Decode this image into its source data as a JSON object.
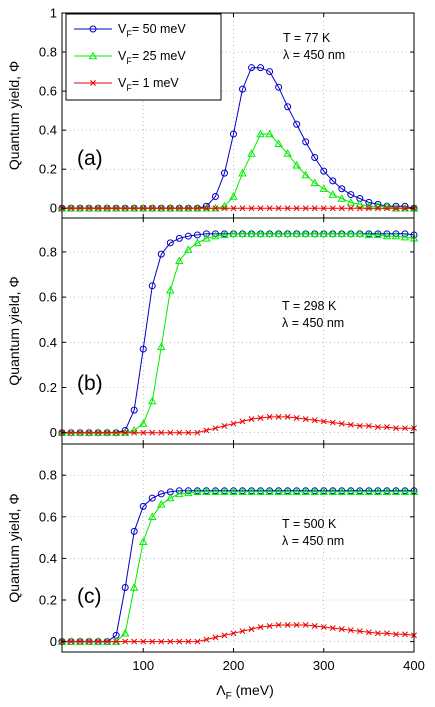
{
  "figure": {
    "x_axis": {
      "label_main": "Λ",
      "label_sub": "F",
      "label_unit": " (meV)",
      "xlim": [
        10,
        400
      ],
      "ticks": [
        100,
        200,
        300,
        400
      ],
      "tick_labels": [
        "100",
        "200",
        "300",
        "400"
      ]
    },
    "y_axis_label": "Quantum yield, Φ",
    "legend": {
      "placement": "top-left of panel (a)",
      "entries": [
        {
          "main": "V",
          "sub": "F",
          "rest": "= 50 meV",
          "color": "#0000cc",
          "marker": "circle"
        },
        {
          "main": "V",
          "sub": "F",
          "rest": "= 25 meV",
          "color": "#00ee00",
          "marker": "triangle"
        },
        {
          "main": "V",
          "sub": "F",
          "rest": "= 1 meV",
          "color": "#ee0000",
          "marker": "x"
        }
      ]
    }
  },
  "chart_data": [
    {
      "type": "line",
      "panel_label": "(a)",
      "conditions": [
        "T = 77 K",
        "λ =  450 nm"
      ],
      "ylim": [
        -0.05,
        1.0
      ],
      "yticks": [
        0,
        0.2,
        0.4,
        0.6,
        0.8,
        1
      ],
      "ytick_labels": [
        "0",
        "0.2",
        "0.4",
        "0.6",
        "0.8",
        "1"
      ],
      "grid": true,
      "x": [
        10,
        20,
        30,
        40,
        50,
        60,
        70,
        80,
        90,
        100,
        110,
        120,
        130,
        140,
        150,
        160,
        170,
        180,
        190,
        200,
        210,
        220,
        230,
        240,
        250,
        260,
        270,
        280,
        290,
        300,
        310,
        320,
        330,
        340,
        350,
        360,
        370,
        380,
        390,
        400
      ],
      "series": [
        {
          "name": "V_F = 50 meV",
          "color": "#0000cc",
          "marker": "circle",
          "values": [
            0,
            0,
            0,
            0,
            0,
            0,
            0,
            0,
            0,
            0,
            0,
            0,
            0,
            0,
            0,
            0,
            0.01,
            0.06,
            0.18,
            0.38,
            0.61,
            0.72,
            0.72,
            0.7,
            0.62,
            0.52,
            0.43,
            0.34,
            0.26,
            0.19,
            0.14,
            0.1,
            0.07,
            0.05,
            0.03,
            0.02,
            0.01,
            0.01,
            0.01,
            0
          ]
        },
        {
          "name": "V_F = 25 meV",
          "color": "#00ee00",
          "marker": "triangle",
          "values": [
            0,
            0,
            0,
            0,
            0,
            0,
            0,
            0,
            0,
            0,
            0,
            0,
            0,
            0,
            0,
            0,
            0,
            0,
            0.01,
            0.06,
            0.18,
            0.28,
            0.38,
            0.38,
            0.33,
            0.28,
            0.22,
            0.17,
            0.13,
            0.1,
            0.07,
            0.05,
            0.03,
            0.02,
            0.01,
            0.01,
            0.01,
            0,
            0,
            0
          ]
        },
        {
          "name": "V_F = 1 meV",
          "color": "#ee0000",
          "marker": "x",
          "values": [
            0,
            0,
            0,
            0,
            0,
            0,
            0,
            0,
            0,
            0,
            0,
            0,
            0,
            0,
            0,
            0,
            0,
            0,
            0,
            0,
            0,
            0,
            0,
            0,
            0,
            0,
            0,
            0,
            0,
            0,
            0,
            0,
            0,
            0,
            0,
            0,
            0,
            0,
            0,
            0
          ]
        }
      ]
    },
    {
      "type": "line",
      "panel_label": "(b)",
      "conditions": [
        "T = 298 K",
        "λ =  450 nm"
      ],
      "ylim": [
        -0.05,
        0.95
      ],
      "yticks": [
        0,
        0.2,
        0.4,
        0.6,
        0.8
      ],
      "ytick_labels": [
        "0",
        "0.2",
        "0.4",
        "0.6",
        "0.8"
      ],
      "grid": true,
      "x": [
        10,
        20,
        30,
        40,
        50,
        60,
        70,
        80,
        90,
        100,
        110,
        120,
        130,
        140,
        150,
        160,
        170,
        180,
        190,
        200,
        210,
        220,
        230,
        240,
        250,
        260,
        270,
        280,
        290,
        300,
        310,
        320,
        330,
        340,
        350,
        360,
        370,
        380,
        390,
        400
      ],
      "series": [
        {
          "name": "V_F = 50 meV",
          "color": "#0000cc",
          "marker": "circle",
          "values": [
            0,
            0,
            0,
            0,
            0,
            0,
            0,
            0.01,
            0.1,
            0.37,
            0.65,
            0.79,
            0.84,
            0.86,
            0.87,
            0.875,
            0.88,
            0.88,
            0.88,
            0.88,
            0.88,
            0.88,
            0.88,
            0.88,
            0.88,
            0.88,
            0.88,
            0.88,
            0.88,
            0.88,
            0.88,
            0.88,
            0.88,
            0.88,
            0.88,
            0.88,
            0.88,
            0.88,
            0.88,
            0.875
          ]
        },
        {
          "name": "V_F = 25 meV",
          "color": "#00ee00",
          "marker": "triangle",
          "values": [
            0,
            0,
            0,
            0,
            0,
            0,
            0,
            0,
            0.01,
            0.04,
            0.14,
            0.38,
            0.63,
            0.76,
            0.81,
            0.84,
            0.86,
            0.87,
            0.875,
            0.88,
            0.88,
            0.88,
            0.88,
            0.88,
            0.88,
            0.88,
            0.88,
            0.88,
            0.88,
            0.88,
            0.88,
            0.88,
            0.88,
            0.88,
            0.875,
            0.875,
            0.87,
            0.87,
            0.865,
            0.86
          ]
        },
        {
          "name": "V_F = 1 meV",
          "color": "#ee0000",
          "marker": "x",
          "values": [
            0,
            0,
            0,
            0,
            0,
            0,
            0,
            0,
            0,
            0,
            0,
            0,
            0,
            0,
            0,
            0,
            0.01,
            0.02,
            0.03,
            0.04,
            0.05,
            0.06,
            0.065,
            0.07,
            0.07,
            0.07,
            0.065,
            0.06,
            0.055,
            0.05,
            0.045,
            0.04,
            0.035,
            0.03,
            0.03,
            0.025,
            0.025,
            0.02,
            0.02,
            0.02
          ]
        }
      ]
    },
    {
      "type": "line",
      "panel_label": "(c)",
      "conditions": [
        "T = 500 K",
        "λ =  450 nm"
      ],
      "ylim": [
        -0.05,
        0.95
      ],
      "yticks": [
        0,
        0.2,
        0.4,
        0.6,
        0.8
      ],
      "ytick_labels": [
        "0",
        "0.2",
        "0.4",
        "0.6",
        "0.8"
      ],
      "grid": true,
      "x": [
        10,
        20,
        30,
        40,
        50,
        60,
        70,
        80,
        90,
        100,
        110,
        120,
        130,
        140,
        150,
        160,
        170,
        180,
        190,
        200,
        210,
        220,
        230,
        240,
        250,
        260,
        270,
        280,
        290,
        300,
        310,
        320,
        330,
        340,
        350,
        360,
        370,
        380,
        390,
        400
      ],
      "series": [
        {
          "name": "V_F = 50 meV",
          "color": "#0000cc",
          "marker": "circle",
          "values": [
            0,
            0,
            0,
            0,
            0,
            0,
            0.03,
            0.26,
            0.53,
            0.65,
            0.69,
            0.71,
            0.72,
            0.725,
            0.725,
            0.725,
            0.725,
            0.725,
            0.725,
            0.725,
            0.725,
            0.725,
            0.725,
            0.725,
            0.725,
            0.725,
            0.725,
            0.725,
            0.725,
            0.725,
            0.725,
            0.725,
            0.725,
            0.725,
            0.725,
            0.725,
            0.725,
            0.725,
            0.725,
            0.725
          ]
        },
        {
          "name": "V_F = 25 meV",
          "color": "#00ee00",
          "marker": "triangle",
          "values": [
            0,
            0,
            0,
            0,
            0,
            0,
            0,
            0.04,
            0.26,
            0.48,
            0.6,
            0.66,
            0.69,
            0.71,
            0.715,
            0.72,
            0.72,
            0.72,
            0.72,
            0.72,
            0.72,
            0.72,
            0.72,
            0.72,
            0.72,
            0.72,
            0.72,
            0.72,
            0.72,
            0.72,
            0.72,
            0.72,
            0.72,
            0.72,
            0.72,
            0.72,
            0.72,
            0.72,
            0.72,
            0.72
          ]
        },
        {
          "name": "V_F = 1 meV",
          "color": "#ee0000",
          "marker": "x",
          "values": [
            0,
            0,
            0,
            0,
            0,
            0,
            0,
            0,
            0,
            0,
            0,
            0,
            0,
            0,
            0,
            0,
            0.01,
            0.02,
            0.03,
            0.04,
            0.05,
            0.06,
            0.07,
            0.075,
            0.08,
            0.08,
            0.08,
            0.08,
            0.075,
            0.07,
            0.065,
            0.06,
            0.055,
            0.05,
            0.045,
            0.04,
            0.04,
            0.035,
            0.035,
            0.03
          ]
        }
      ]
    }
  ]
}
